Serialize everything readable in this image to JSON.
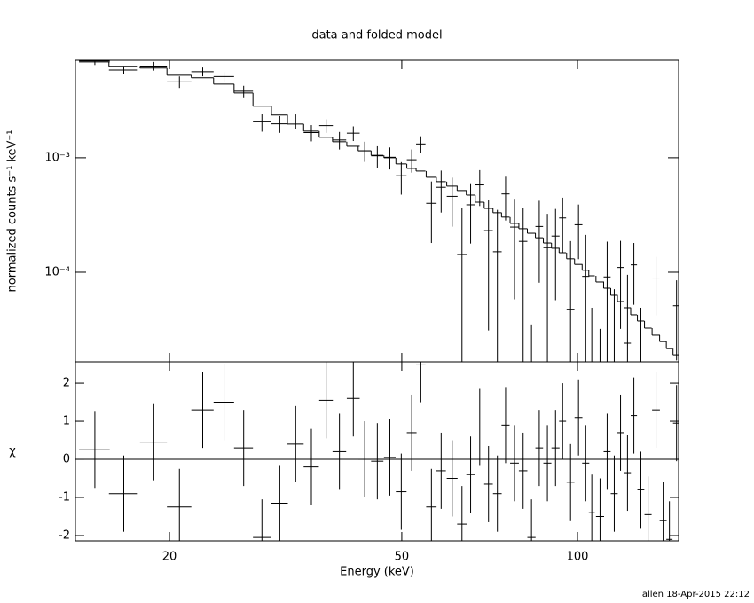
{
  "footer": "allen 18-Apr-2015 22:12",
  "chart_data": [
    {
      "type": "errorbar",
      "title": "data and folded model",
      "ylabel": "normalized counts s⁻¹ keV⁻¹",
      "log_x": true,
      "log_y": true,
      "color": "#000000",
      "model_color": "#000000",
      "xlim": [
        13.8,
        149
      ],
      "ylim": [
        1.65e-05,
        0.0071
      ],
      "yticks": [
        {
          "value": 0.001,
          "label": "10⁻³"
        },
        {
          "value": 0.0001,
          "label": "10⁻⁴"
        }
      ],
      "x": [
        14.9,
        16.7,
        18.8,
        20.8,
        22.8,
        24.8,
        26.8,
        28.8,
        30.9,
        32.9,
        35.0,
        37.1,
        39.1,
        41.3,
        43.2,
        45.4,
        47.7,
        49.9,
        52.0,
        53.9,
        56.2,
        58.4,
        61.0,
        63.4,
        65.6,
        68.0,
        70.4,
        72.9,
        75.3,
        78.0,
        80.7,
        83.4,
        86.0,
        88.8,
        91.7,
        94.3,
        97.3,
        100.4,
        103.3,
        105.8,
        109.3,
        112.4,
        115.6,
        118.5,
        121.8,
        124.9,
        128.4,
        132.1,
        136.3,
        140.2,
        143.7,
        147.8
      ],
      "xerr": [
        0.9,
        0.95,
        1.0,
        1.0,
        1.0,
        1.0,
        1.0,
        1.0,
        1.0,
        1.05,
        1.05,
        1.0,
        1.05,
        1.05,
        1.1,
        1.1,
        1.1,
        1.05,
        1.0,
        1.0,
        1.15,
        1.1,
        1.3,
        1.2,
        1.1,
        1.2,
        1.2,
        1.25,
        1.2,
        1.35,
        1.35,
        1.35,
        1.3,
        1.4,
        1.45,
        1.3,
        1.5,
        1.55,
        1.45,
        1.25,
        1.75,
        1.55,
        1.6,
        1.45,
        1.65,
        1.55,
        1.75,
        1.85,
        2.1,
        1.95,
        1.75,
        2.05
      ],
      "values": [
        0.00701,
        0.00584,
        0.00632,
        0.0046,
        0.00564,
        0.00512,
        0.00381,
        0.00206,
        0.00198,
        0.00209,
        0.00166,
        0.00191,
        0.00143,
        0.00164,
        0.00115,
        0.00104,
        0.00101,
        0.000696,
        0.000961,
        0.00132,
        0.0004,
        0.000552,
        0.00046,
        0.000143,
        0.000388,
        0.000579,
        0.000231,
        0.000151,
        0.000483,
        0.000248,
        0.000186,
        -0.00014,
        0.000251,
        0.000164,
        0.000207,
        0.000298,
        4.7e-05,
        0.00026,
        9.2e-05,
        -6.1e-05,
        -6.8e-05,
        9.1e-05,
        -1.4e-05,
        0.00011,
        2.4e-05,
        0.000116,
        -9e-06,
        -4.3e-05,
        8.9e-05,
        -4.2e-05,
        -5.8e-05,
        5.1e-05
      ],
      "yerr": [
        0.00055,
        0.0005,
        0.00055,
        0.00053,
        0.0005,
        0.00048,
        0.00044,
        0.00037,
        0.00033,
        0.0003,
        0.00027,
        0.00026,
        0.00025,
        0.00024,
        0.00023,
        0.00022,
        0.00022,
        0.00022,
        0.00022,
        0.00022,
        0.00022,
        0.00022,
        0.00021,
        0.00022,
        0.00021,
        0.0002,
        0.0002,
        0.0002,
        0.0002,
        0.00019,
        0.00018,
        0.000175,
        0.00017,
        0.00016,
        0.00015,
        0.00015,
        0.00014,
        0.00013,
        0.00012,
        0.00011,
        0.0001,
        9.4e-05,
        8.5e-05,
        7.8e-05,
        7.1e-05,
        6.4e-05,
        5.8e-05,
        5.2e-05,
        4.7e-05,
        4.2e-05,
        3.8e-05,
        3.4e-05
      ],
      "model": [
        0.00687,
        0.00629,
        0.00607,
        0.00526,
        0.00499,
        0.0044,
        0.00368,
        0.00282,
        0.00236,
        0.00197,
        0.00171,
        0.00151,
        0.00138,
        0.00126,
        0.00115,
        0.00105,
        0.001,
        0.000883,
        0.000807,
        0.000765,
        0.000675,
        0.000618,
        0.000565,
        0.000517,
        0.000472,
        0.000409,
        0.000361,
        0.000331,
        0.000303,
        0.000267,
        0.00024,
        0.000219,
        0.0002,
        0.00018,
        0.000162,
        0.000148,
        0.000131,
        0.000117,
        0.000104,
        9.31e-05,
        8.22e-05,
        7.25e-05,
        6.29e-05,
        5.55e-05,
        4.9e-05,
        4.25e-05,
        3.75e-05,
        3.25e-05,
        2.82e-05,
        2.48e-05,
        2.15e-05,
        1.9e-05
      ]
    },
    {
      "type": "residual",
      "xlabel": "Energy (keV)",
      "ylabel": "χ",
      "color": "#000000",
      "zero_line_color": "#00dd00",
      "residual_err": 1,
      "xticks": [
        20,
        50,
        100
      ],
      "ylim": [
        -2.14,
        2.56
      ],
      "yticks": [
        -2,
        -1,
        0,
        1,
        2
      ],
      "values": [
        0.25,
        -0.9,
        0.45,
        -1.25,
        1.3,
        1.5,
        0.3,
        -2.05,
        -1.15,
        0.4,
        -0.2,
        1.55,
        0.2,
        1.6,
        0,
        -0.05,
        0.05,
        -0.85,
        0.7,
        2.5,
        -1.25,
        -0.3,
        -0.5,
        -1.7,
        -0.4,
        0.85,
        -0.65,
        -0.9,
        0.9,
        -0.1,
        -0.3,
        -2.05,
        0.3,
        -0.1,
        0.3,
        1.0,
        -0.6,
        1.1,
        -0.1,
        -1.4,
        -1.5,
        0.2,
        -0.9,
        0.7,
        -0.35,
        1.15,
        -0.8,
        -1.45,
        1.3,
        -1.6,
        -2.1,
        0.95
      ]
    }
  ]
}
